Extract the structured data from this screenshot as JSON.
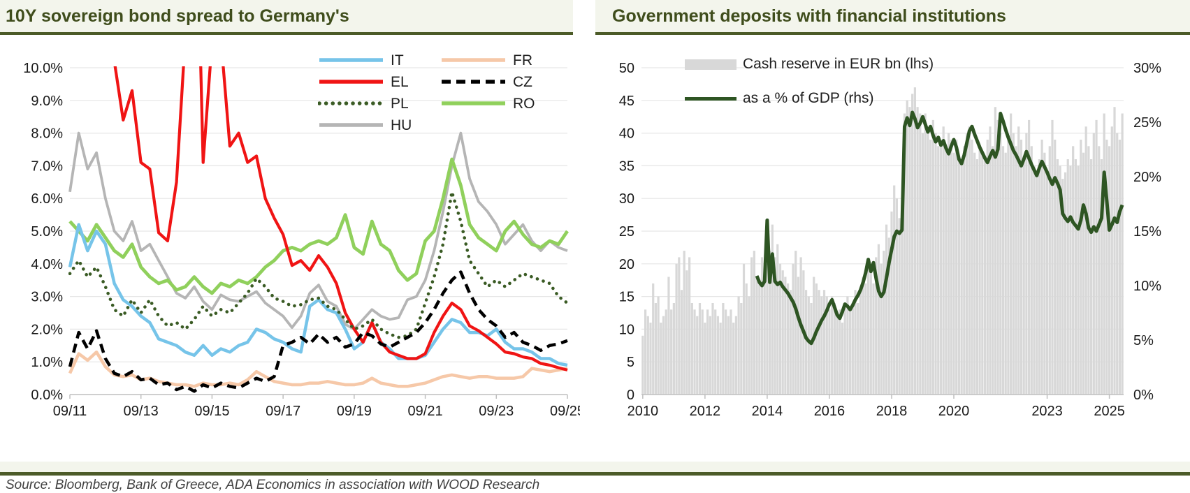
{
  "left_panel": {
    "title": "10Y sovereign bond spread to Germany's"
  },
  "right_panel": {
    "title": "Government deposits with financial institutions"
  },
  "source": "Source: Bloomberg, Bank of Greece, ADA Economics in association with WOOD Research",
  "colors": {
    "accent_rule": "#4C5B28",
    "title_text": "#3F4D1C",
    "gridline": "#E6E6E6",
    "axis_line": "#BFBFBF",
    "axis_text": "#1a1a1a"
  },
  "chart_data": [
    {
      "type": "line",
      "title": "10Y sovereign bond spread to Germany's",
      "x_range": "Sep-2011 to Sep-2025, quarterly",
      "x_tick_labels": [
        "09/11",
        "09/13",
        "09/15",
        "09/17",
        "09/19",
        "09/21",
        "09/23",
        "09/25"
      ],
      "x_tick_indices": [
        0,
        8,
        16,
        24,
        32,
        40,
        48,
        56
      ],
      "ylim": [
        0,
        10
      ],
      "y_tick_labels": [
        "0.0%",
        "1.0%",
        "2.0%",
        "3.0%",
        "4.0%",
        "5.0%",
        "6.0%",
        "7.0%",
        "8.0%",
        "9.0%",
        "10.0%"
      ],
      "grid": true,
      "legend_position": "top-right, two columns",
      "legend_order_series_indices": [
        0,
        4,
        1,
        5,
        2,
        6,
        3
      ],
      "series": [
        {
          "name": "IT",
          "color": "#76C4E9",
          "style": "solid",
          "values": [
            3.9,
            5.2,
            4.4,
            5.0,
            4.6,
            3.4,
            2.9,
            2.7,
            2.4,
            2.2,
            1.7,
            1.6,
            1.5,
            1.3,
            1.2,
            1.5,
            1.2,
            1.4,
            1.3,
            1.5,
            1.6,
            2.0,
            1.9,
            1.7,
            1.6,
            1.4,
            1.3,
            2.7,
            2.9,
            2.6,
            2.5,
            2.0,
            1.4,
            1.6,
            2.2,
            1.6,
            1.4,
            1.1,
            1.1,
            1.1,
            1.2,
            1.6,
            2.0,
            2.3,
            2.2,
            1.9,
            1.9,
            1.8,
            2.0,
            1.6,
            1.4,
            1.4,
            1.3,
            1.1,
            1.1,
            0.95,
            0.9
          ]
        },
        {
          "name": "EL",
          "color": "#F01414",
          "style": "solid",
          "values": [
            17,
            25,
            22,
            14,
            10.5,
            10.2,
            8.4,
            9.3,
            7.1,
            6.9,
            4.95,
            4.7,
            6.5,
            11,
            18,
            7.1,
            10.8,
            10.9,
            7.6,
            8.0,
            7.1,
            7.3,
            6.0,
            5.4,
            4.9,
            3.95,
            4.1,
            3.8,
            4.25,
            3.9,
            3.4,
            2.5,
            2.0,
            1.6,
            2.2,
            1.6,
            1.3,
            1.2,
            1.1,
            1.1,
            1.25,
            1.9,
            2.4,
            2.8,
            2.6,
            2.1,
            1.95,
            1.75,
            1.55,
            1.3,
            1.25,
            1.15,
            1.1,
            0.95,
            0.9,
            0.82,
            0.75
          ]
        },
        {
          "name": "PL",
          "color": "#3A5B24",
          "style": "dotted",
          "values": [
            3.7,
            4.1,
            3.6,
            3.9,
            3.3,
            2.6,
            2.4,
            2.9,
            2.5,
            2.9,
            2.4,
            2.1,
            2.2,
            2.0,
            2.3,
            2.7,
            2.4,
            2.6,
            2.5,
            2.8,
            3.1,
            3.55,
            3.3,
            2.95,
            2.85,
            2.7,
            2.75,
            2.9,
            2.95,
            2.7,
            2.6,
            2.3,
            2.0,
            2.1,
            2.3,
            2.0,
            1.85,
            1.75,
            1.8,
            2.0,
            2.8,
            3.6,
            4.6,
            6.2,
            5.3,
            4.1,
            3.7,
            3.3,
            3.5,
            3.3,
            3.5,
            3.7,
            3.6,
            3.5,
            3.4,
            3.0,
            2.8
          ]
        },
        {
          "name": "HU",
          "color": "#B5B5B5",
          "style": "solid",
          "values": [
            6.2,
            8.0,
            6.9,
            7.4,
            6.0,
            5.0,
            4.7,
            5.3,
            4.4,
            4.6,
            4.1,
            3.6,
            3.1,
            2.95,
            3.3,
            2.85,
            2.6,
            3.05,
            2.9,
            2.85,
            3.0,
            3.15,
            2.8,
            2.6,
            2.4,
            2.05,
            2.4,
            3.1,
            3.35,
            2.85,
            2.7,
            2.15,
            2.0,
            2.3,
            2.6,
            2.4,
            2.3,
            2.35,
            2.9,
            3.0,
            3.5,
            4.4,
            5.6,
            7.0,
            8.0,
            6.6,
            5.9,
            5.6,
            5.2,
            4.6,
            4.9,
            5.2,
            4.7,
            4.4,
            4.7,
            4.5,
            4.4
          ]
        },
        {
          "name": "FR",
          "color": "#F6C8A8",
          "style": "solid",
          "values": [
            0.65,
            1.25,
            1.05,
            1.3,
            0.85,
            0.6,
            0.55,
            0.6,
            0.45,
            0.5,
            0.4,
            0.35,
            0.3,
            0.3,
            0.25,
            0.35,
            0.3,
            0.3,
            0.35,
            0.3,
            0.45,
            0.7,
            0.55,
            0.4,
            0.35,
            0.3,
            0.3,
            0.35,
            0.35,
            0.4,
            0.35,
            0.3,
            0.3,
            0.35,
            0.5,
            0.35,
            0.3,
            0.25,
            0.25,
            0.3,
            0.35,
            0.45,
            0.55,
            0.6,
            0.55,
            0.5,
            0.55,
            0.55,
            0.5,
            0.5,
            0.5,
            0.55,
            0.8,
            0.75,
            0.7,
            0.75,
            0.8
          ]
        },
        {
          "name": "CZ",
          "color": "#000000",
          "style": "dashed",
          "values": [
            0.85,
            1.9,
            1.4,
            1.95,
            1.1,
            0.65,
            0.55,
            0.7,
            0.45,
            0.5,
            0.3,
            0.35,
            0.15,
            0.25,
            0.1,
            0.3,
            0.2,
            0.35,
            0.25,
            0.2,
            0.35,
            0.5,
            0.4,
            0.55,
            1.5,
            1.6,
            1.75,
            1.55,
            1.85,
            1.6,
            1.75,
            1.45,
            1.55,
            1.9,
            1.8,
            1.55,
            1.45,
            1.6,
            1.75,
            1.9,
            2.2,
            2.6,
            3.1,
            3.5,
            3.75,
            3.1,
            2.6,
            2.3,
            2.1,
            1.75,
            1.9,
            1.6,
            1.5,
            1.35,
            1.5,
            1.55,
            1.65
          ]
        },
        {
          "name": "RO",
          "color": "#90D05C",
          "style": "solid",
          "values": [
            5.3,
            5.0,
            4.7,
            5.2,
            4.8,
            4.4,
            4.2,
            4.6,
            3.9,
            3.6,
            3.4,
            3.5,
            3.2,
            3.3,
            3.6,
            3.3,
            3.1,
            3.4,
            3.3,
            3.5,
            3.4,
            3.6,
            3.9,
            4.1,
            4.4,
            4.5,
            4.4,
            4.6,
            4.7,
            4.6,
            4.8,
            5.5,
            4.5,
            4.3,
            5.3,
            4.6,
            4.4,
            3.8,
            3.5,
            3.7,
            4.7,
            5.0,
            6.0,
            7.2,
            6.4,
            5.2,
            4.8,
            4.6,
            4.4,
            5.0,
            5.3,
            4.9,
            4.6,
            4.5,
            4.7,
            4.6,
            5.0
          ]
        }
      ]
    },
    {
      "type": "bar+line",
      "title": "Government deposits with financial institutions",
      "x_range": "Jan-2010 to Jun-2025, monthly",
      "x_tick_labels": [
        "2010",
        "2012",
        "2014",
        "2016",
        "2018",
        "2020",
        "2023",
        "2025"
      ],
      "x_tick_month_indices": [
        0,
        24,
        48,
        72,
        96,
        120,
        156,
        180
      ],
      "lhs_axis": {
        "min": 0,
        "max": 50,
        "step": 5,
        "labels": [
          "0",
          "5",
          "10",
          "15",
          "20",
          "25",
          "30",
          "35",
          "40",
          "45",
          "50"
        ]
      },
      "rhs_axis": {
        "min": 0,
        "max": 30,
        "step": 5,
        "labels": [
          "0%",
          "5%",
          "10%",
          "15%",
          "20%",
          "25%",
          "30%"
        ]
      },
      "grid": true,
      "legend_position": "top-left inside plot",
      "bars": {
        "name": "Cash reserve in EUR bn (lhs)",
        "color": "#D8D8D8",
        "values": [
          9,
          13,
          12,
          11,
          17,
          14,
          15,
          11,
          12,
          13,
          18,
          13,
          14,
          20,
          21,
          16,
          22,
          19,
          21,
          14,
          13,
          12,
          14,
          13,
          11,
          13,
          12,
          14,
          13,
          12,
          11,
          14,
          13,
          12,
          13,
          11,
          12,
          15,
          14,
          20,
          17,
          15,
          21,
          22,
          18,
          17,
          21,
          18,
          20,
          22,
          26,
          21,
          23,
          20,
          19,
          18,
          17,
          16,
          20,
          22,
          18,
          21,
          19,
          16,
          15,
          14,
          18,
          17,
          16,
          15,
          16,
          15,
          13,
          15,
          14,
          12,
          13,
          11,
          14,
          15,
          13,
          14,
          16,
          14,
          16,
          18,
          17,
          20,
          19,
          17,
          21,
          23,
          20,
          22,
          26,
          24,
          28,
          32,
          30,
          27,
          29,
          43,
          45,
          44,
          46,
          47,
          44,
          43,
          40,
          43,
          41,
          39,
          42,
          40,
          38,
          39,
          41,
          38,
          40,
          39,
          37,
          39,
          36,
          35,
          38,
          40,
          41,
          39,
          37,
          36,
          38,
          37,
          36,
          39,
          41,
          38,
          44,
          42,
          40,
          38,
          37,
          39,
          43,
          40,
          38,
          41,
          39,
          36,
          40,
          42,
          38,
          35,
          34,
          36,
          39,
          37,
          34,
          38,
          42,
          39,
          36,
          35,
          33,
          34,
          36,
          35,
          38,
          36,
          35,
          39,
          37,
          41,
          38,
          36,
          40,
          42,
          38,
          36,
          43,
          39,
          38,
          41,
          44,
          40,
          39,
          43
        ]
      },
      "line": {
        "name": "as a % of GDP (rhs)",
        "color": "#2E5523",
        "start_index": 44,
        "values": [
          10.9,
          10.3,
          10.0,
          10.4,
          16.0,
          10.3,
          12.9,
          10.4,
          10.1,
          10.3,
          9.9,
          9.6,
          9.3,
          8.9,
          8.5,
          7.9,
          7.1,
          6.4,
          5.8,
          5.2,
          4.9,
          4.7,
          5.2,
          5.8,
          6.3,
          6.8,
          7.2,
          7.7,
          8.3,
          8.7,
          8.0,
          7.3,
          7.0,
          7.6,
          8.3,
          8.1,
          7.8,
          8.2,
          8.7,
          9.1,
          9.6,
          10.3,
          11.2,
          12.4,
          11.3,
          12.1,
          10.7,
          9.5,
          9.0,
          9.4,
          10.7,
          12.1,
          13.3,
          14.5,
          15.0,
          14.8,
          15.1,
          24.6,
          25.4,
          24.7,
          25.9,
          25.3,
          24.5,
          24.9,
          25.5,
          24.8,
          24.1,
          24.6,
          23.8,
          23.2,
          23.6,
          22.9,
          23.3,
          22.6,
          22.1,
          22.8,
          23.4,
          22.7,
          21.6,
          21.2,
          22.0,
          23.1,
          24.2,
          24.6,
          23.9,
          23.3,
          22.7,
          22.2,
          21.7,
          21.3,
          21.9,
          22.4,
          21.8,
          22.5,
          25.8,
          25.1,
          24.3,
          23.6,
          23.0,
          22.4,
          22.0,
          21.5,
          21.0,
          21.6,
          22.3,
          21.7,
          21.1,
          20.6,
          20.1,
          20.8,
          21.4,
          20.9,
          20.4,
          19.8,
          19.3,
          19.9,
          19.4,
          18.8,
          16.6,
          16.2,
          15.9,
          16.3,
          15.8,
          15.5,
          15.2,
          16.0,
          17.4,
          16.6,
          15.3,
          14.9,
          15.4,
          15.0,
          15.6,
          16.2,
          20.4,
          17.8,
          15.1,
          15.6,
          16.2,
          15.8,
          16.8,
          17.4
        ]
      }
    }
  ]
}
